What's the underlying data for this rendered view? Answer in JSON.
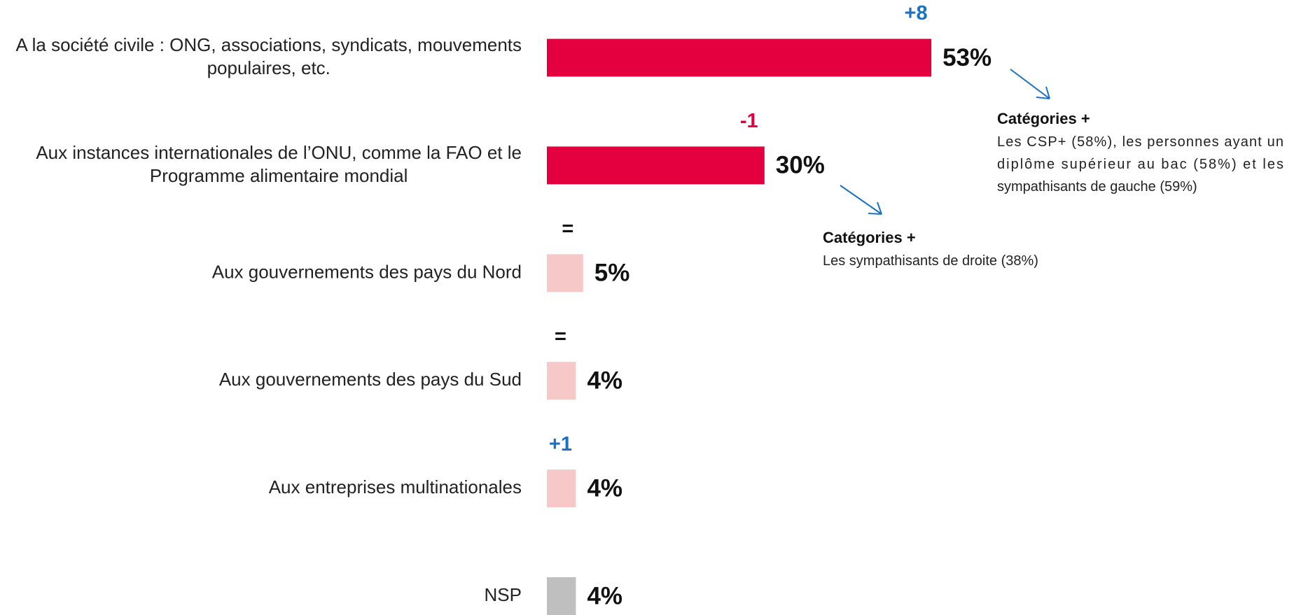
{
  "chart_data": {
    "type": "bar",
    "orientation": "horizontal",
    "categories": [
      "A la société civile : ONG, associations, syndicats, mouvements populaires, etc.",
      "Aux instances internationales de l’ONU, comme la FAO et le Programme alimentaire mondial",
      "Aux gouvernements des pays du Nord",
      "Aux gouvernements des pays du Sud",
      "Aux entreprises multinationales",
      "NSP"
    ],
    "values": [
      53,
      30,
      5,
      4,
      4,
      4
    ],
    "value_labels": [
      "53%",
      "30%",
      "5%",
      "4%",
      "4%",
      "4%"
    ],
    "colors": [
      "#e4003e",
      "#e4003e",
      "#f7c8c8",
      "#f7c8c8",
      "#f7c8c8",
      "#bfbfbf"
    ],
    "changes": [
      "+8",
      "-1",
      "=",
      "=",
      "+1",
      null
    ],
    "change_colors": [
      "#1a72c0",
      "#e4003e",
      "#111111",
      "#111111",
      "#1a72c0",
      null
    ],
    "annotations": [
      {
        "title": "Catégories +",
        "text": "Les CSP+ (58%), les personnes ayant un diplôme supérieur au bac (58%) et les sympathisants de gauche (59%)"
      },
      {
        "title": "Catégories +",
        "text": "Les sympathisants de droite (38%)"
      }
    ]
  }
}
